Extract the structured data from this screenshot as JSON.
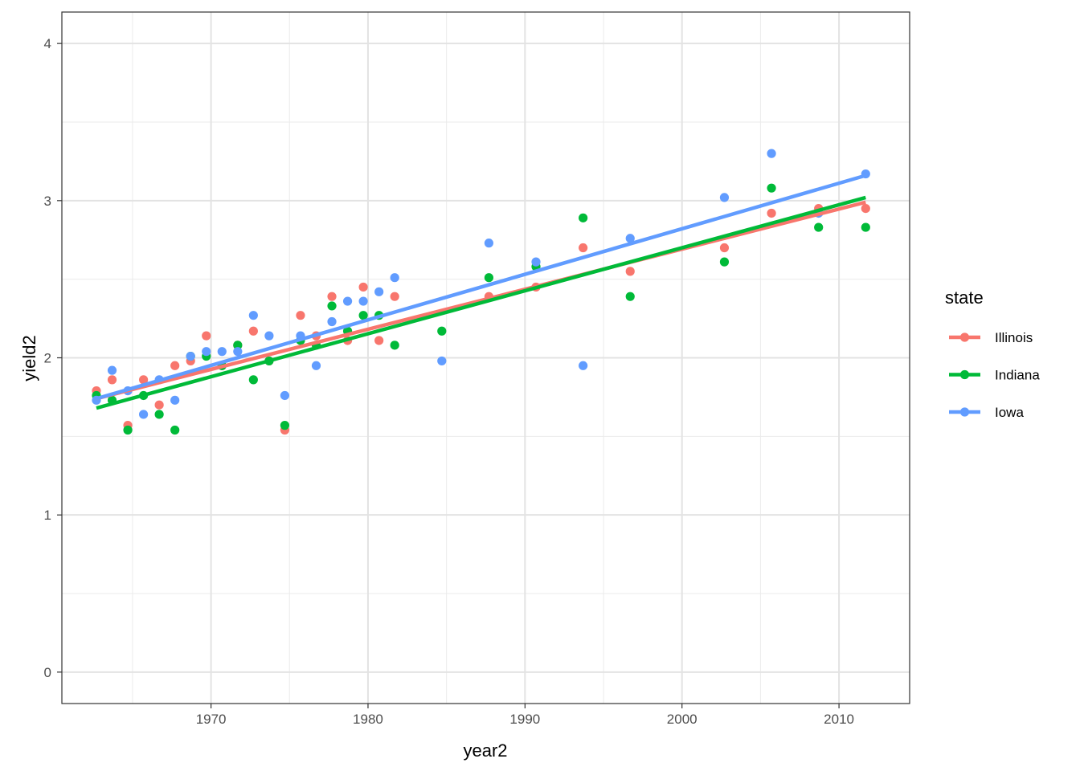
{
  "chart_data": {
    "type": "scatter",
    "xlabel": "year2",
    "ylabel": "yield2",
    "xlim": [
      1960.5,
      2014.5
    ],
    "ylim": [
      -0.2,
      4.2
    ],
    "x_ticks": [
      1970,
      1980,
      1990,
      2000,
      2010
    ],
    "y_ticks": [
      0,
      1,
      2,
      3,
      4
    ],
    "grid": true,
    "legend": {
      "title": "state",
      "position": "right"
    },
    "series": [
      {
        "name": "Illinois",
        "color": "#F8766D",
        "trend": {
          "x": [
            1962.7,
            2011.7
          ],
          "y": [
            1.74,
            2.99
          ]
        },
        "points": [
          [
            1962.7,
            1.79
          ],
          [
            1963.7,
            1.86
          ],
          [
            1964.7,
            1.57
          ],
          [
            1965.7,
            1.86
          ],
          [
            1966.7,
            1.7
          ],
          [
            1967.7,
            1.95
          ],
          [
            1968.7,
            1.98
          ],
          [
            1969.7,
            2.14
          ],
          [
            1970.7,
            1.95
          ],
          [
            1971.7,
            2.08
          ],
          [
            1972.7,
            2.17
          ],
          [
            1973.7,
            1.98
          ],
          [
            1974.7,
            1.54
          ],
          [
            1975.7,
            2.27
          ],
          [
            1976.7,
            2.14
          ],
          [
            1977.7,
            2.39
          ],
          [
            1978.7,
            2.11
          ],
          [
            1979.7,
            2.45
          ],
          [
            1980.7,
            2.11
          ],
          [
            1981.7,
            2.39
          ],
          [
            1987.7,
            2.39
          ],
          [
            1990.7,
            2.45
          ],
          [
            1993.7,
            2.7
          ],
          [
            1996.7,
            2.55
          ],
          [
            2002.7,
            2.7
          ],
          [
            2005.7,
            2.92
          ],
          [
            2008.7,
            2.95
          ],
          [
            2011.7,
            2.95
          ]
        ]
      },
      {
        "name": "Indiana",
        "color": "#00BA38",
        "trend": {
          "x": [
            1962.7,
            2011.7
          ],
          "y": [
            1.68,
            3.02
          ]
        },
        "points": [
          [
            1962.7,
            1.76
          ],
          [
            1963.7,
            1.73
          ],
          [
            1964.7,
            1.54
          ],
          [
            1965.7,
            1.76
          ],
          [
            1966.7,
            1.64
          ],
          [
            1967.7,
            1.54
          ],
          [
            1968.7,
            2.01
          ],
          [
            1969.7,
            2.01
          ],
          [
            1970.7,
            1.95
          ],
          [
            1971.7,
            2.08
          ],
          [
            1972.7,
            1.86
          ],
          [
            1973.7,
            1.98
          ],
          [
            1974.7,
            1.57
          ],
          [
            1975.7,
            2.11
          ],
          [
            1976.7,
            2.08
          ],
          [
            1977.7,
            2.33
          ],
          [
            1978.7,
            2.17
          ],
          [
            1979.7,
            2.27
          ],
          [
            1980.7,
            2.27
          ],
          [
            1981.7,
            2.08
          ],
          [
            1984.7,
            2.17
          ],
          [
            1987.7,
            2.51
          ],
          [
            1990.7,
            2.58
          ],
          [
            1993.7,
            2.89
          ],
          [
            1996.7,
            2.39
          ],
          [
            2002.7,
            2.61
          ],
          [
            2005.7,
            3.08
          ],
          [
            2008.7,
            2.83
          ],
          [
            2011.7,
            2.83
          ]
        ]
      },
      {
        "name": "Iowa",
        "color": "#619CFF",
        "trend": {
          "x": [
            1962.7,
            2011.7
          ],
          "y": [
            1.74,
            3.16
          ]
        },
        "points": [
          [
            1962.7,
            1.73
          ],
          [
            1963.7,
            1.92
          ],
          [
            1964.7,
            1.79
          ],
          [
            1965.7,
            1.64
          ],
          [
            1966.7,
            1.86
          ],
          [
            1967.7,
            1.73
          ],
          [
            1968.7,
            2.01
          ],
          [
            1969.7,
            2.04
          ],
          [
            1970.7,
            2.04
          ],
          [
            1971.7,
            2.04
          ],
          [
            1972.7,
            2.27
          ],
          [
            1973.7,
            2.14
          ],
          [
            1974.7,
            1.76
          ],
          [
            1975.7,
            2.14
          ],
          [
            1976.7,
            1.95
          ],
          [
            1977.7,
            2.23
          ],
          [
            1978.7,
            2.36
          ],
          [
            1979.7,
            2.36
          ],
          [
            1980.7,
            2.42
          ],
          [
            1981.7,
            2.51
          ],
          [
            1984.7,
            1.98
          ],
          [
            1987.7,
            2.73
          ],
          [
            1990.7,
            2.61
          ],
          [
            1993.7,
            1.95
          ],
          [
            1996.7,
            2.76
          ],
          [
            2002.7,
            3.02
          ],
          [
            2005.7,
            3.3
          ],
          [
            2008.7,
            2.92
          ],
          [
            2011.7,
            3.17
          ]
        ]
      }
    ]
  }
}
